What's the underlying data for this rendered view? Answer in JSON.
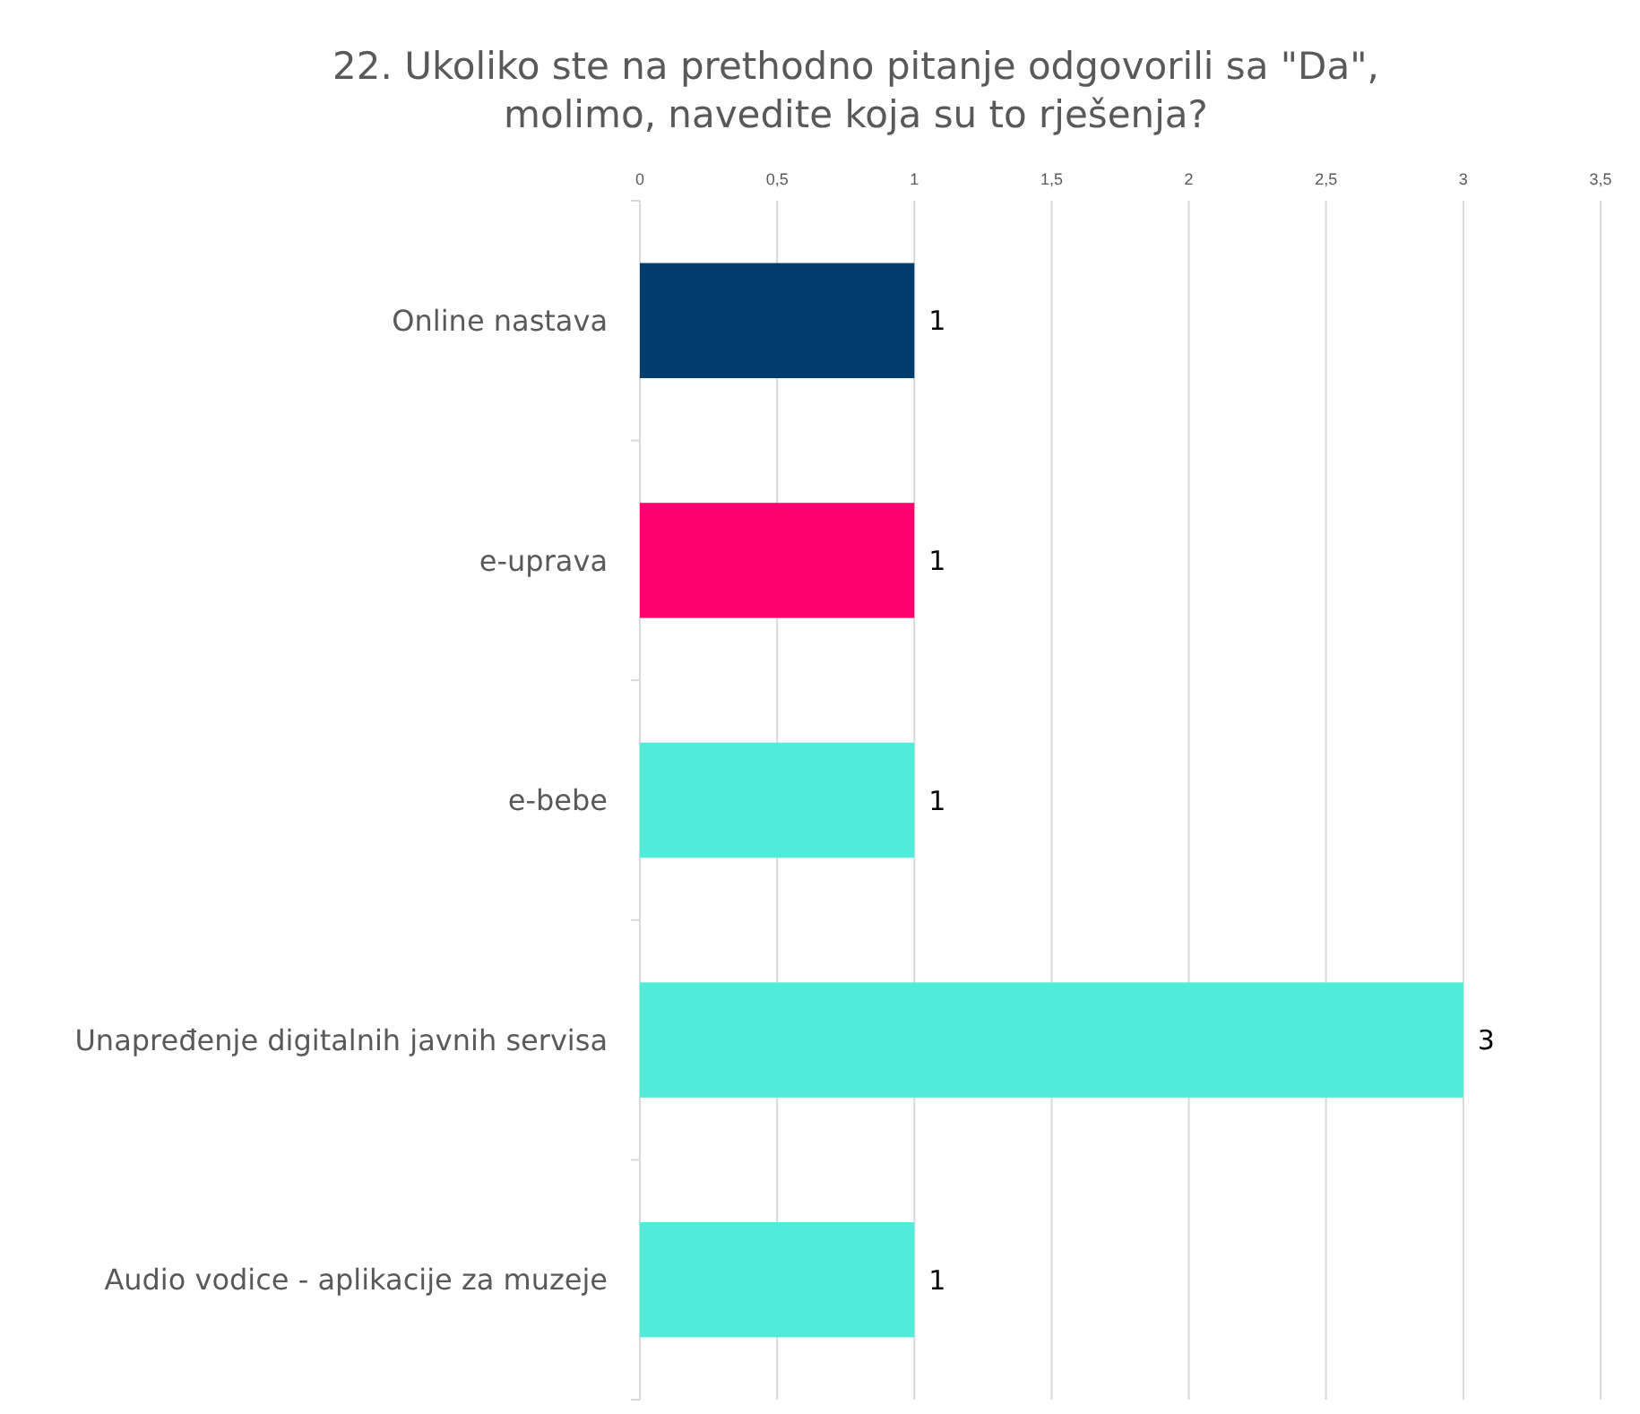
{
  "chart_data": {
    "type": "bar",
    "orientation": "horizontal",
    "title": "22. Ukoliko ste na prethodno pitanje odgovorili sa \"Da\", molimo, navedite koja su to rješenja?",
    "categories": [
      "Online nastava",
      "e-uprava",
      "e-bebe",
      "Unapređenje digitalnih javnih servisa",
      "Audio vodice - aplikacije za muzeje"
    ],
    "values": [
      1,
      1,
      1,
      3,
      1
    ],
    "colors": [
      "#003d6e",
      "#ff0070",
      "#4eecd9",
      "#4eecd9",
      "#4eecd9"
    ],
    "xlim": [
      0,
      3.5
    ],
    "xticks": [
      0,
      {
        "value": 0.5,
        "label": "0,5"
      },
      1,
      {
        "value": 1.5,
        "label": "1,5"
      },
      2,
      {
        "value": 2.5,
        "label": "2,5"
      },
      3,
      {
        "value": 3.5,
        "label": "3,5"
      }
    ],
    "grid": "x",
    "data_labels": true
  }
}
